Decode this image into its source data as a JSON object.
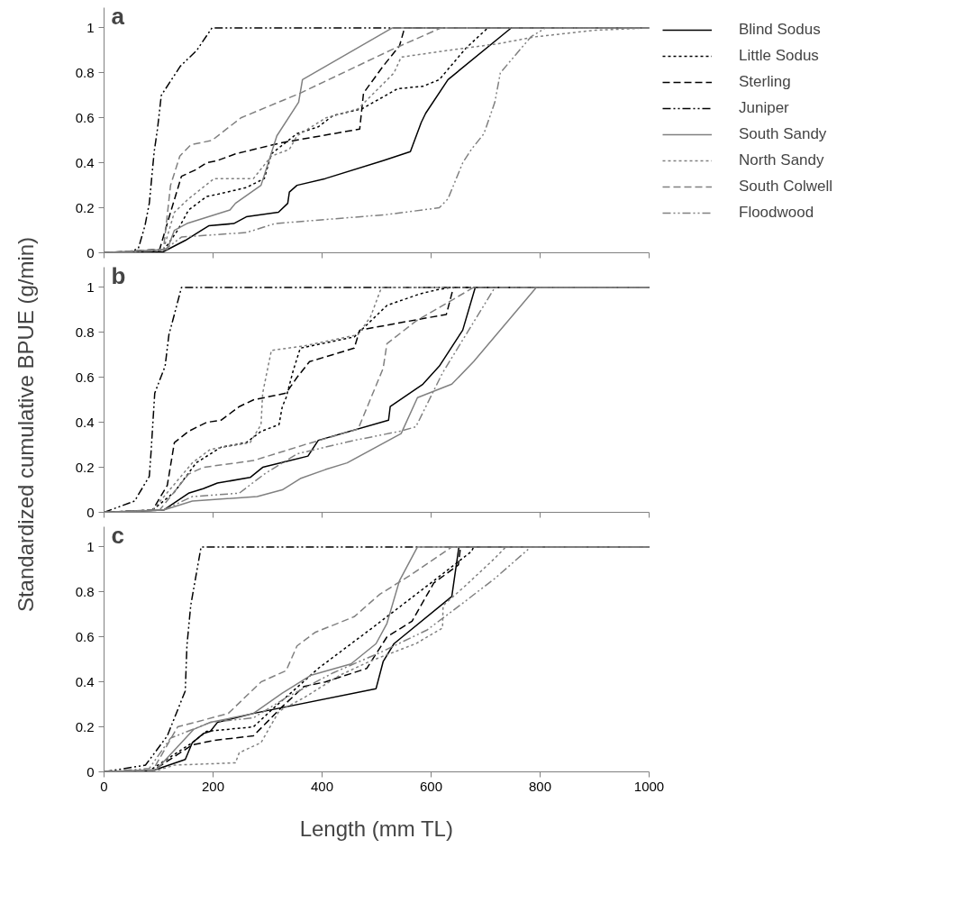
{
  "chart_data": [
    {
      "type": "line",
      "title": "a",
      "xlim": [
        0,
        1000
      ],
      "ylim": [
        0,
        1.09
      ],
      "xticks": [
        0,
        200,
        400,
        600,
        800,
        1000
      ],
      "yticks": [
        0,
        0.2,
        0.4,
        0.6,
        0.8,
        1
      ],
      "tick_labels": "y",
      "grid": false,
      "legend": "right",
      "series": [
        {
          "name": "Blind Sodus",
          "color": "#000000",
          "line_style": "solid",
          "x": [
            0,
            109,
            149,
            192,
            238,
            261,
            320,
            337,
            340,
            354,
            406,
            512,
            562,
            582,
            590,
            631,
            747,
            1000
          ],
          "values": [
            0,
            0.005,
            0.055,
            0.12,
            0.13,
            0.16,
            0.18,
            0.22,
            0.27,
            0.3,
            0.33,
            0.41,
            0.45,
            0.58,
            0.62,
            0.77,
            1,
            1
          ]
        },
        {
          "name": "Little Sodus",
          "color": "#000000",
          "line_style": "dotted",
          "x": [
            0,
            109,
            135,
            155,
            188,
            208,
            261,
            294,
            307,
            354,
            393,
            420,
            473,
            539,
            585,
            615,
            664,
            704,
            1000
          ],
          "values": [
            0,
            0.01,
            0.1,
            0.19,
            0.25,
            0.26,
            0.29,
            0.33,
            0.44,
            0.53,
            0.56,
            0.61,
            0.64,
            0.73,
            0.74,
            0.77,
            0.91,
            1,
            1
          ]
        },
        {
          "name": "Sterling",
          "color": "#000000",
          "line_style": "dashed",
          "x": [
            0,
            102,
            122,
            142,
            169,
            188,
            208,
            241,
            327,
            469,
            476,
            512,
            542,
            549,
            551,
            1000
          ],
          "values": [
            0,
            0.015,
            0.18,
            0.34,
            0.37,
            0.4,
            0.41,
            0.44,
            0.49,
            0.55,
            0.71,
            0.83,
            0.92,
            0.98,
            1,
            1
          ]
        },
        {
          "name": "Juniper",
          "color": "#000000",
          "line_style": "dashdot",
          "x": [
            0,
            50,
            63,
            75,
            83,
            92,
            98,
            105,
            140,
            170,
            198,
            1000
          ],
          "values": [
            0,
            0.005,
            0.02,
            0.12,
            0.22,
            0.45,
            0.55,
            0.7,
            0.83,
            0.9,
            1,
            1
          ]
        },
        {
          "name": "South Sandy",
          "color": "#808080",
          "line_style": "solid",
          "x": [
            0,
            116,
            129,
            152,
            231,
            241,
            288,
            317,
            357,
            364,
            529,
            1000
          ],
          "values": [
            0,
            0.015,
            0.1,
            0.13,
            0.19,
            0.22,
            0.3,
            0.52,
            0.67,
            0.77,
            1,
            1
          ]
        },
        {
          "name": "North Sandy",
          "color": "#808080",
          "line_style": "dotted",
          "x": [
            0,
            109,
            129,
            155,
            202,
            274,
            307,
            340,
            354,
            407,
            466,
            499,
            532,
            545,
            631,
            724,
            790,
            902,
            1000
          ],
          "values": [
            0,
            0.015,
            0.18,
            0.24,
            0.33,
            0.33,
            0.43,
            0.46,
            0.52,
            0.6,
            0.64,
            0.72,
            0.8,
            0.87,
            0.9,
            0.93,
            0.96,
            0.99,
            1
          ]
        },
        {
          "name": "South Colwell",
          "color": "#808080",
          "line_style": "dashed",
          "x": [
            0,
            109,
            122,
            139,
            159,
            198,
            251,
            360,
            525,
            618,
            1000
          ],
          "values": [
            0,
            0.015,
            0.3,
            0.43,
            0.48,
            0.5,
            0.6,
            0.71,
            0.9,
            1,
            1
          ]
        },
        {
          "name": "Floodwood",
          "color": "#808080",
          "line_style": "dashdot",
          "x": [
            0,
            109,
            142,
            261,
            314,
            519,
            615,
            631,
            658,
            674,
            697,
            717,
            727,
            783,
            810,
            1000
          ],
          "values": [
            0,
            0.01,
            0.07,
            0.09,
            0.13,
            0.17,
            0.2,
            0.24,
            0.4,
            0.46,
            0.53,
            0.67,
            0.8,
            0.96,
            1,
            1
          ]
        }
      ]
    },
    {
      "type": "line",
      "title": "b",
      "ylabel": "Standardized cumulative BPUE (g/min)",
      "xlim": [
        0,
        1000
      ],
      "ylim": [
        0,
        1.09
      ],
      "xticks": [
        0,
        200,
        400,
        600,
        800,
        1000
      ],
      "yticks": [
        0,
        0.2,
        0.4,
        0.6,
        0.8,
        1
      ],
      "tick_labels": "y",
      "grid": false,
      "series": [
        {
          "color": "#000000",
          "line_style": "solid",
          "x": [
            0,
            109,
            155,
            182,
            208,
            268,
            291,
            374,
            393,
            522,
            525,
            585,
            615,
            658,
            681,
            1000
          ],
          "values": [
            0,
            0.01,
            0.085,
            0.105,
            0.13,
            0.155,
            0.2,
            0.25,
            0.32,
            0.41,
            0.47,
            0.57,
            0.65,
            0.81,
            1,
            1
          ]
        },
        {
          "color": "#000000",
          "line_style": "dotted",
          "x": [
            0,
            89,
            129,
            169,
            215,
            261,
            288,
            321,
            327,
            334,
            347,
            360,
            459,
            519,
            578,
            611,
            638,
            1000
          ],
          "values": [
            0,
            0.01,
            0.09,
            0.22,
            0.29,
            0.31,
            0.36,
            0.39,
            0.47,
            0.51,
            0.63,
            0.73,
            0.78,
            0.92,
            0.97,
            0.99,
            1,
            1
          ]
        },
        {
          "color": "#000000",
          "line_style": "dashed",
          "x": [
            0,
            89,
            116,
            129,
            155,
            188,
            215,
            248,
            274,
            334,
            354,
            377,
            459,
            469,
            559,
            628,
            641,
            1000
          ],
          "values": [
            0,
            0.01,
            0.12,
            0.31,
            0.36,
            0.4,
            0.41,
            0.47,
            0.5,
            0.53,
            0.6,
            0.67,
            0.73,
            0.81,
            0.85,
            0.88,
            1,
            1
          ]
        },
        {
          "color": "#000000",
          "line_style": "dashdot",
          "x": [
            0,
            56,
            83,
            86,
            93,
            112,
            119,
            129,
            142,
            1000
          ],
          "values": [
            0,
            0.05,
            0.16,
            0.26,
            0.53,
            0.65,
            0.79,
            0.88,
            1,
            1
          ]
        },
        {
          "color": "#808080",
          "line_style": "solid",
          "x": [
            0,
            109,
            162,
            281,
            327,
            360,
            406,
            446,
            545,
            575,
            638,
            678,
            793,
            1000
          ],
          "values": [
            0,
            0.01,
            0.05,
            0.07,
            0.1,
            0.15,
            0.19,
            0.22,
            0.35,
            0.51,
            0.57,
            0.67,
            1,
            1
          ]
        },
        {
          "color": "#808080",
          "line_style": "dotted",
          "x": [
            0,
            89,
            162,
            195,
            268,
            288,
            291,
            307,
            367,
            466,
            489,
            509,
            1000
          ],
          "values": [
            0,
            0.01,
            0.22,
            0.28,
            0.31,
            0.39,
            0.53,
            0.72,
            0.74,
            0.79,
            0.87,
            1,
            1
          ]
        },
        {
          "color": "#808080",
          "line_style": "dashed",
          "x": [
            0,
            102,
            155,
            182,
            274,
            367,
            466,
            512,
            519,
            572,
            678,
            1000
          ],
          "values": [
            0,
            0.01,
            0.17,
            0.2,
            0.23,
            0.3,
            0.37,
            0.64,
            0.75,
            0.85,
            1,
            1
          ]
        },
        {
          "color": "#808080",
          "line_style": "dashdot",
          "x": [
            0,
            109,
            162,
            248,
            294,
            354,
            459,
            542,
            572,
            621,
            717,
            1000
          ],
          "values": [
            0,
            0.01,
            0.07,
            0.085,
            0.17,
            0.26,
            0.32,
            0.36,
            0.38,
            0.62,
            1,
            1
          ]
        }
      ]
    },
    {
      "type": "line",
      "title": "c",
      "xlabel": "Length (mm TL)",
      "xlim": [
        0,
        1000
      ],
      "ylim": [
        0,
        1.09
      ],
      "xticks": [
        0,
        200,
        400,
        600,
        800,
        1000
      ],
      "yticks": [
        0,
        0.2,
        0.4,
        0.6,
        0.8,
        1
      ],
      "grid": false,
      "series": [
        {
          "color": "#000000",
          "line_style": "solid",
          "x": [
            0,
            89,
            149,
            162,
            182,
            195,
            208,
            274,
            499,
            512,
            532,
            638,
            651,
            1000
          ],
          "values": [
            0,
            0.005,
            0.055,
            0.13,
            0.17,
            0.18,
            0.22,
            0.26,
            0.37,
            0.49,
            0.57,
            0.78,
            1,
            1
          ]
        },
        {
          "color": "#000000",
          "line_style": "dotted",
          "x": [
            0,
            83,
            162,
            188,
            274,
            314,
            347,
            393,
            492,
            605,
            674,
            678,
            1000
          ],
          "values": [
            0,
            0.005,
            0.13,
            0.18,
            0.2,
            0.29,
            0.36,
            0.46,
            0.64,
            0.85,
            0.98,
            1,
            1
          ]
        },
        {
          "color": "#000000",
          "line_style": "dashed",
          "x": [
            0,
            89,
            162,
            202,
            274,
            327,
            367,
            406,
            482,
            519,
            565,
            605,
            650,
            654,
            1000
          ],
          "values": [
            0,
            0.005,
            0.12,
            0.14,
            0.16,
            0.29,
            0.38,
            0.4,
            0.46,
            0.6,
            0.67,
            0.84,
            0.92,
            1,
            1
          ]
        },
        {
          "color": "#000000",
          "line_style": "dashdot",
          "x": [
            0,
            76,
            116,
            149,
            152,
            159,
            178,
            1000
          ],
          "values": [
            0,
            0.03,
            0.16,
            0.36,
            0.56,
            0.74,
            1,
            1
          ]
        },
        {
          "color": "#808080",
          "line_style": "solid",
          "x": [
            0,
            96,
            142,
            165,
            195,
            274,
            327,
            380,
            453,
            499,
            519,
            542,
            575,
            1000
          ],
          "values": [
            0,
            0.01,
            0.13,
            0.19,
            0.22,
            0.26,
            0.35,
            0.43,
            0.48,
            0.57,
            0.66,
            0.85,
            1,
            1
          ]
        },
        {
          "color": "#808080",
          "line_style": "dotted",
          "x": [
            0,
            96,
            129,
            241,
            248,
            288,
            321,
            367,
            433,
            486,
            572,
            621,
            622,
            664,
            717,
            737,
            1000
          ],
          "values": [
            0,
            0.005,
            0.03,
            0.04,
            0.085,
            0.13,
            0.27,
            0.33,
            0.43,
            0.49,
            0.57,
            0.64,
            0.74,
            0.83,
            0.95,
            1,
            1
          ]
        },
        {
          "color": "#808080",
          "line_style": "dashed",
          "x": [
            0,
            89,
            135,
            182,
            228,
            288,
            334,
            354,
            387,
            459,
            506,
            559,
            638,
            1000
          ],
          "values": [
            0,
            0.005,
            0.2,
            0.23,
            0.26,
            0.4,
            0.45,
            0.56,
            0.62,
            0.69,
            0.79,
            0.87,
            1,
            1
          ]
        },
        {
          "color": "#808080",
          "line_style": "dashdot",
          "x": [
            0,
            83,
            122,
            195,
            274,
            334,
            420,
            506,
            592,
            658,
            717,
            783,
            1000
          ],
          "values": [
            0,
            0.015,
            0.15,
            0.22,
            0.24,
            0.33,
            0.44,
            0.53,
            0.63,
            0.75,
            0.86,
            1,
            1
          ]
        }
      ]
    }
  ]
}
